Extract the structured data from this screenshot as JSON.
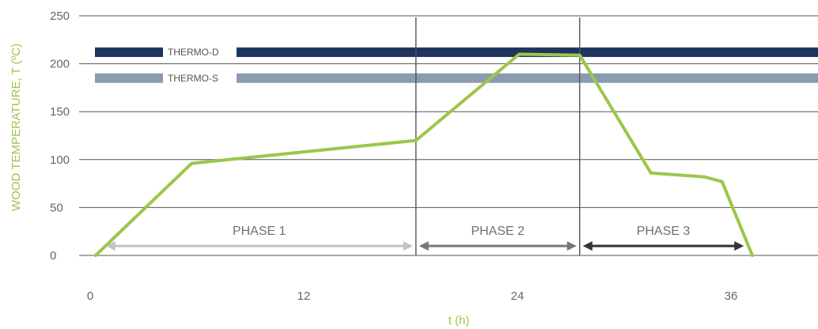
{
  "chart_data": {
    "type": "line",
    "xlabel": "t (h)",
    "ylabel": "WOOD TEMPERATURE, T (ºC)",
    "xlim": [
      0,
      40
    ],
    "ylim": [
      0,
      250
    ],
    "x_ticks": [
      0,
      12,
      24,
      36
    ],
    "y_ticks": [
      0,
      50,
      100,
      150,
      200,
      250
    ],
    "grid": "horizontal",
    "series": [
      {
        "color": "#9CC64A",
        "x": [
          0.3,
          5.7,
          18.3,
          24.1,
          27.5,
          31.5,
          34.5,
          35.5,
          37.2
        ],
        "y": [
          0,
          96,
          120,
          210,
          209,
          86,
          82,
          77,
          0
        ]
      }
    ],
    "phase_boundaries": [
      18.3,
      27.5
    ],
    "phases": [
      {
        "label": "PHASE 1",
        "x_start": 0.7,
        "x_end": 18.3,
        "color": "#C2C2C2"
      },
      {
        "label": "PHASE 2",
        "x_start": 18.3,
        "x_end": 27.5,
        "color": "#777777"
      },
      {
        "label": "PHASE 3",
        "x_start": 27.5,
        "x_end": 36.9,
        "color": "#333333"
      }
    ],
    "bands": [
      {
        "label": "THERMO-D",
        "y": 212,
        "color": "#1E3560"
      },
      {
        "label": "THERMO-S",
        "y": 185,
        "color": "#8A9AB2"
      }
    ],
    "colors": {
      "axis_title": "#9CC64A",
      "grid": "#555555"
    }
  }
}
